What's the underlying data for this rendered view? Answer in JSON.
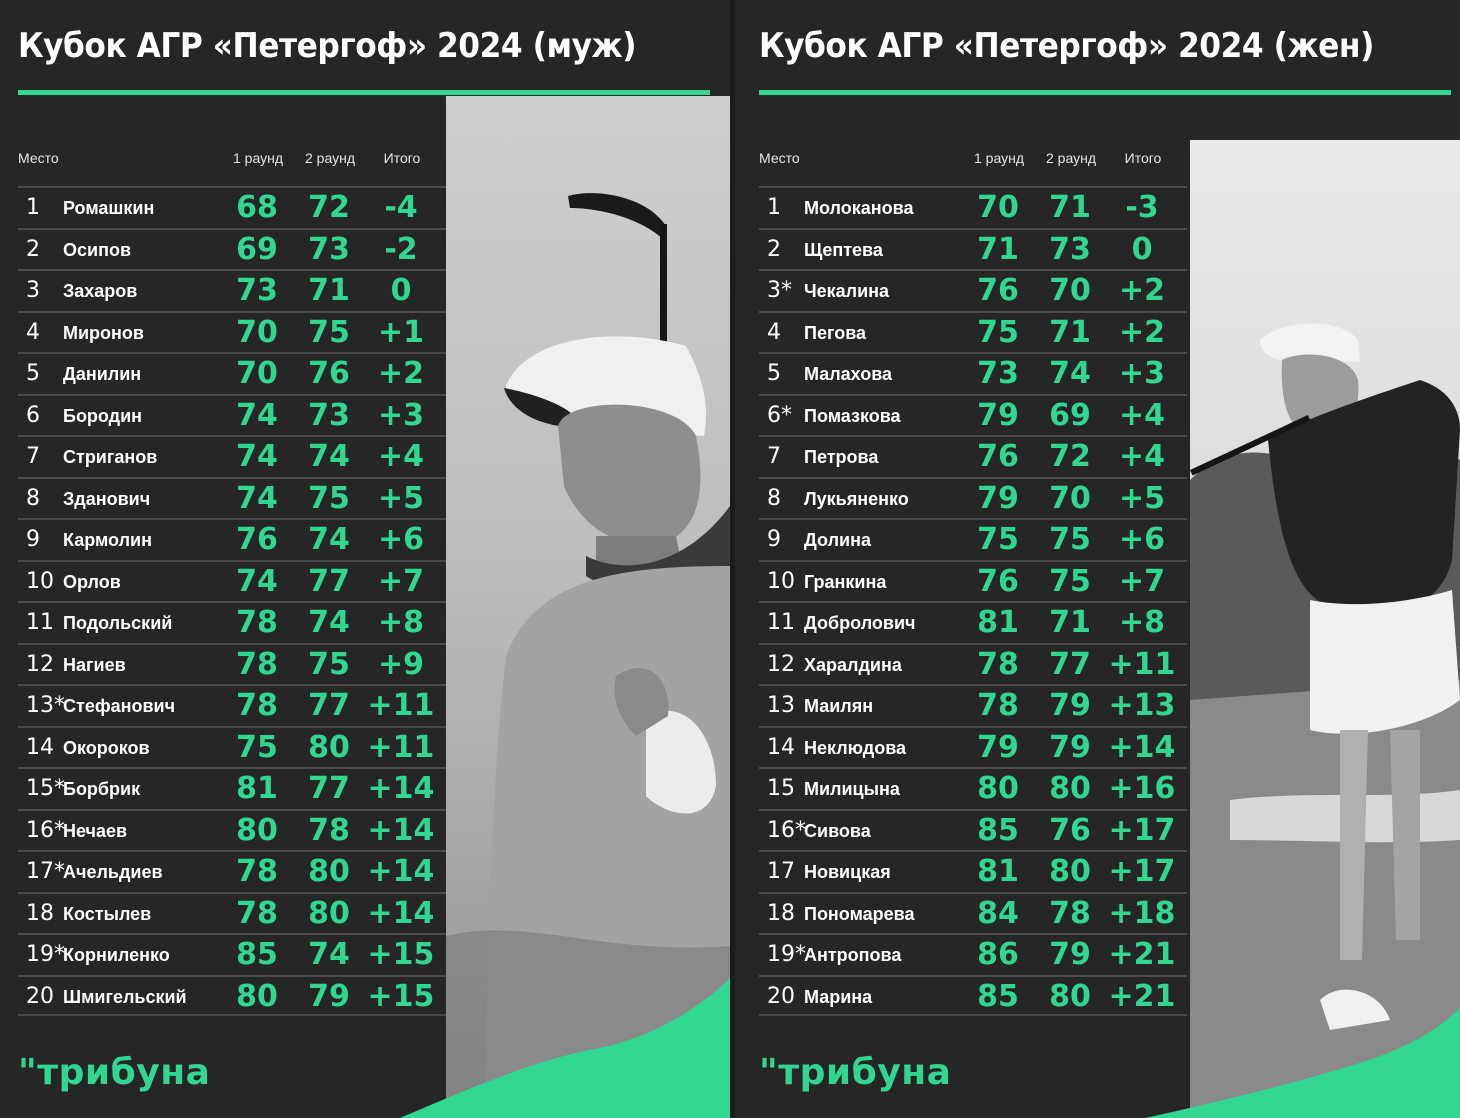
{
  "men": {
    "title": "Кубок АГР «Петергоф» 2024 (муж)",
    "headers": {
      "place": "Место",
      "round1": "1 раунд",
      "round2": "2 раунд",
      "total": "Итого"
    },
    "rows": [
      {
        "place": "1",
        "name": "Ромашкин",
        "r1": "68",
        "r2": "72",
        "total": "-4"
      },
      {
        "place": "2",
        "name": "Осипов",
        "r1": "69",
        "r2": "73",
        "total": "-2"
      },
      {
        "place": "3",
        "name": "Захаров",
        "r1": "73",
        "r2": "71",
        "total": "0"
      },
      {
        "place": "4",
        "name": "Миронов",
        "r1": "70",
        "r2": "75",
        "total": "+1"
      },
      {
        "place": "5",
        "name": "Данилин",
        "r1": "70",
        "r2": "76",
        "total": "+2"
      },
      {
        "place": "6",
        "name": "Бородин",
        "r1": "74",
        "r2": "73",
        "total": "+3"
      },
      {
        "place": "7",
        "name": "Стриганов",
        "r1": "74",
        "r2": "74",
        "total": "+4"
      },
      {
        "place": "8",
        "name": "Зданович",
        "r1": "74",
        "r2": "75",
        "total": "+5"
      },
      {
        "place": "9",
        "name": "Кармолин",
        "r1": "76",
        "r2": "74",
        "total": "+6"
      },
      {
        "place": "10",
        "name": "Орлов",
        "r1": "74",
        "r2": "77",
        "total": "+7"
      },
      {
        "place": "11",
        "name": "Подольский",
        "r1": "78",
        "r2": "74",
        "total": "+8"
      },
      {
        "place": "12",
        "name": "Нагиев",
        "r1": "78",
        "r2": "75",
        "total": "+9"
      },
      {
        "place": "13*",
        "name": "Стефанович",
        "r1": "78",
        "r2": "77",
        "total": "+11"
      },
      {
        "place": "14",
        "name": "Окороков",
        "r1": "75",
        "r2": "80",
        "total": "+11"
      },
      {
        "place": "15*",
        "name": "Борбрик",
        "r1": "81",
        "r2": "77",
        "total": "+14"
      },
      {
        "place": "16*",
        "name": "Нечаев",
        "r1": "80",
        "r2": "78",
        "total": "+14"
      },
      {
        "place": "17*",
        "name": "Ачельдиев",
        "r1": "78",
        "r2": "80",
        "total": "+14"
      },
      {
        "place": "18",
        "name": "Костылев",
        "r1": "78",
        "r2": "80",
        "total": "+14"
      },
      {
        "place": "19*",
        "name": "Корниленко",
        "r1": "85",
        "r2": "74",
        "total": "+15"
      },
      {
        "place": "20",
        "name": "Шмигельский",
        "r1": "80",
        "r2": "79",
        "total": "+15"
      }
    ],
    "logo": "\"трибуна"
  },
  "women": {
    "title": "Кубок АГР «Петергоф» 2024 (жен)",
    "headers": {
      "place": "Место",
      "round1": "1 раунд",
      "round2": "2 раунд",
      "total": "Итого"
    },
    "rows": [
      {
        "place": "1",
        "name": "Молоканова",
        "r1": "70",
        "r2": "71",
        "total": "-3"
      },
      {
        "place": "2",
        "name": "Щептева",
        "r1": "71",
        "r2": "73",
        "total": "0"
      },
      {
        "place": "3*",
        "name": "Чекалина",
        "r1": "76",
        "r2": "70",
        "total": "+2"
      },
      {
        "place": "4",
        "name": "Пегова",
        "r1": "75",
        "r2": "71",
        "total": "+2"
      },
      {
        "place": "5",
        "name": "Малахова",
        "r1": "73",
        "r2": "74",
        "total": "+3"
      },
      {
        "place": "6*",
        "name": "Помазкова",
        "r1": "79",
        "r2": "69",
        "total": "+4"
      },
      {
        "place": "7",
        "name": "Петрова",
        "r1": "76",
        "r2": "72",
        "total": "+4"
      },
      {
        "place": "8",
        "name": "Лукьяненко",
        "r1": "79",
        "r2": "70",
        "total": "+5"
      },
      {
        "place": "9",
        "name": "Долина",
        "r1": "75",
        "r2": "75",
        "total": "+6"
      },
      {
        "place": "10",
        "name": "Гранкина",
        "r1": "76",
        "r2": "75",
        "total": "+7"
      },
      {
        "place": "11",
        "name": "Добролович",
        "r1": "81",
        "r2": "71",
        "total": "+8"
      },
      {
        "place": "12",
        "name": "Харалдина",
        "r1": "78",
        "r2": "77",
        "total": "+11"
      },
      {
        "place": "13",
        "name": "Маилян",
        "r1": "78",
        "r2": "79",
        "total": "+13"
      },
      {
        "place": "14",
        "name": "Неклюдова",
        "r1": "79",
        "r2": "79",
        "total": "+14"
      },
      {
        "place": "15",
        "name": "Милицына",
        "r1": "80",
        "r2": "80",
        "total": "+16"
      },
      {
        "place": "16*",
        "name": "Сивова",
        "r1": "85",
        "r2": "76",
        "total": "+17"
      },
      {
        "place": "17",
        "name": "Новицкая",
        "r1": "81",
        "r2": "80",
        "total": "+17"
      },
      {
        "place": "18",
        "name": "Пономарева",
        "r1": "84",
        "r2": "78",
        "total": "+18"
      },
      {
        "place": "19*",
        "name": "Антропова",
        "r1": "86",
        "r2": "79",
        "total": "+21"
      },
      {
        "place": "20",
        "name": "Марина",
        "r1": "85",
        "r2": "80",
        "total": "+21"
      }
    ],
    "logo": "\"трибуна"
  },
  "colors": {
    "accent": "#31d690",
    "background": "#262626",
    "text": "#ffffff",
    "row_border": "#4a4a4a"
  }
}
